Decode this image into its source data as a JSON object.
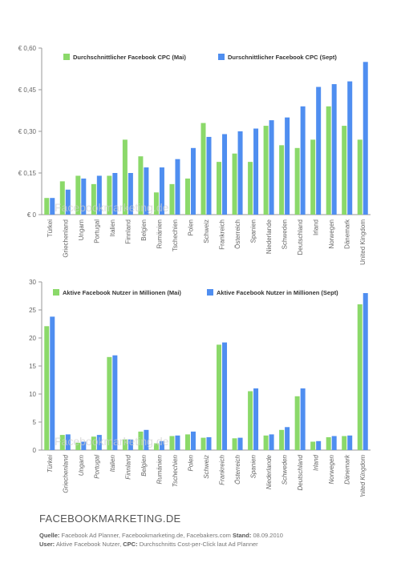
{
  "chart_data": [
    {
      "type": "bar",
      "categories": [
        "Türkei",
        "Griechenland",
        "Ungarn",
        "Portugal",
        "Italien",
        "Finnland",
        "Belgien",
        "Rumänien",
        "Tschechien",
        "Polen",
        "Schweiz",
        "Frankreich",
        "Österreich",
        "Spanien",
        "Niederlande",
        "Schweden",
        "Deutschland",
        "Irland",
        "Norwegen",
        "Dänemark",
        "United Kingdom"
      ],
      "series": [
        {
          "name": "Durchschnittlicher Facebook CPC (Mai)",
          "color": "#8bd96a",
          "values": [
            0.06,
            0.12,
            0.14,
            0.11,
            0.14,
            0.27,
            0.21,
            0.08,
            0.11,
            0.13,
            0.33,
            0.19,
            0.22,
            0.19,
            0.32,
            0.25,
            0.24,
            0.27,
            0.39,
            0.32,
            0.27
          ]
        },
        {
          "name": "Durschnittlicher Facebook CPC (Sept)",
          "color": "#4f8ef0",
          "values": [
            0.06,
            0.09,
            0.13,
            0.14,
            0.15,
            0.15,
            0.17,
            0.17,
            0.2,
            0.24,
            0.28,
            0.29,
            0.3,
            0.31,
            0.34,
            0.35,
            0.39,
            0.46,
            0.47,
            0.48,
            0.55
          ]
        }
      ],
      "ylim": [
        0,
        0.6
      ],
      "yticks": [
        0,
        0.15,
        0.3,
        0.45,
        0.6
      ],
      "ytick_labels": [
        "€ 0",
        "€ 0,15",
        "€ 0,30",
        "€ 0,45",
        "€ 0,60"
      ],
      "watermark": "Facebookmarketing.de"
    },
    {
      "type": "bar",
      "categories": [
        "Türkei",
        "Griechenland",
        "Ungarn",
        "Portugal",
        "Italien",
        "Finnland",
        "Belgien",
        "Rumänien",
        "Tschechien",
        "Polen",
        "Schweiz",
        "Frankreich",
        "Österreich",
        "Spanien",
        "Niederlande",
        "Schweden",
        "Deutschland",
        "Irland",
        "Norwegen",
        "Dänemark",
        "United Kingdom"
      ],
      "series": [
        {
          "name": "Aktive Facebook Nutzer in Millionen (Mai)",
          "color": "#8bd96a",
          "values": [
            22.1,
            2.7,
            1.3,
            2.4,
            16.6,
            1.9,
            3.3,
            1.2,
            2.5,
            2.8,
            2.2,
            18.8,
            2.1,
            10.5,
            2.6,
            3.6,
            9.6,
            1.5,
            2.3,
            2.5,
            26.0
          ]
        },
        {
          "name": "Aktive Facebook Nutzer in Millionen (Sept)",
          "color": "#4f8ef0",
          "values": [
            23.8,
            2.8,
            1.5,
            2.7,
            16.9,
            1.9,
            3.6,
            1.6,
            2.6,
            3.3,
            2.3,
            19.2,
            2.2,
            11.0,
            2.8,
            4.1,
            11.0,
            1.6,
            2.5,
            2.6,
            28.0
          ]
        }
      ],
      "ylim": [
        0,
        30
      ],
      "yticks": [
        0,
        5,
        10,
        15,
        20,
        25,
        30
      ],
      "ytick_labels": [
        "0",
        "5",
        "10",
        "15",
        "20",
        "25",
        "30"
      ],
      "watermark": "Facebookmarketing.de"
    }
  ],
  "footer": {
    "brand": "FACEBOOKMARKETING.DE",
    "quelle_label": "Quelle:",
    "quelle_text": "Facebook Ad Planner, Facebookmarketing.de, Facebakers.com",
    "stand_label": "Stand:",
    "stand_text": "08.09.2010",
    "user_label": "User:",
    "user_text": "Aktive Facebook Nutzer,",
    "cpc_label": "CPC:",
    "cpc_text": "Durchschnitts Cost-per-Click laut Ad Planner"
  }
}
